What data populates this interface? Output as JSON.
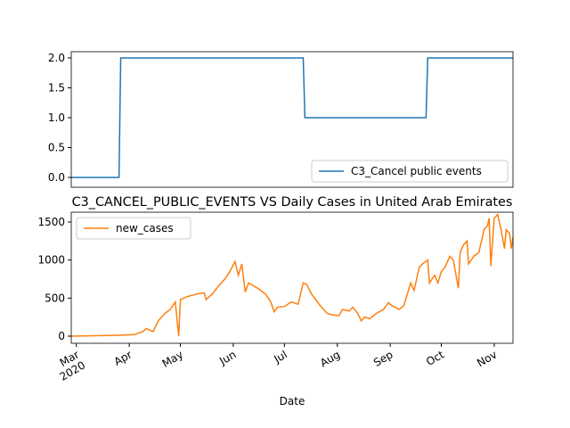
{
  "chart_data": [
    {
      "type": "line",
      "x": [
        "2020-02-27",
        "2020-03-26",
        "2020-03-27",
        "2020-07-12",
        "2020-07-13",
        "2020-09-22",
        "2020-09-23",
        "2020-11-12"
      ],
      "series": [
        {
          "name": "C3_Cancel public events",
          "color": "#1f77b4",
          "values": [
            0,
            0,
            2,
            2,
            1,
            1,
            2,
            2
          ]
        }
      ],
      "xlim": [
        "2020-02-27",
        "2020-11-12"
      ],
      "ylim": [
        -0.164,
        2.104
      ],
      "yticks": [
        {
          "value": 0,
          "label": "0.0"
        },
        {
          "value": 0.5,
          "label": "0.5"
        },
        {
          "value": 1,
          "label": "1.0"
        },
        {
          "value": 1.5,
          "label": "1.5"
        },
        {
          "value": 2,
          "label": "2.0"
        }
      ],
      "legend": "lower right"
    },
    {
      "type": "line",
      "title": "C3_CANCEL_PUBLIC_EVENTS VS Daily Cases in United Arab Emirates",
      "x_label": "Date",
      "x": [
        "2020-02-27",
        "2020-03-24",
        "2020-04-04",
        "2020-04-09",
        "2020-04-11",
        "2020-04-15",
        "2020-04-18",
        "2020-04-22",
        "2020-04-25",
        "2020-04-28",
        "2020-04-30",
        "2020-05-01",
        "2020-05-05",
        "2020-05-10",
        "2020-05-15",
        "2020-05-16",
        "2020-05-20",
        "2020-05-23",
        "2020-05-27",
        "2020-05-30",
        "2020-06-02",
        "2020-06-04",
        "2020-06-06",
        "2020-06-08",
        "2020-06-10",
        "2020-06-16",
        "2020-06-20",
        "2020-06-23",
        "2020-06-25",
        "2020-06-27",
        "2020-07-01",
        "2020-07-05",
        "2020-07-09",
        "2020-07-12",
        "2020-07-14",
        "2020-07-17",
        "2020-07-22",
        "2020-07-26",
        "2020-07-29",
        "2020-08-02",
        "2020-08-04",
        "2020-08-08",
        "2020-08-10",
        "2020-08-13",
        "2020-08-15",
        "2020-08-17",
        "2020-08-20",
        "2020-08-24",
        "2020-08-28",
        "2020-08-31",
        "2020-09-02",
        "2020-09-04",
        "2020-09-06",
        "2020-09-09",
        "2020-09-11",
        "2020-09-13",
        "2020-09-15",
        "2020-09-18",
        "2020-09-20",
        "2020-09-23",
        "2020-09-24",
        "2020-09-27",
        "2020-09-29",
        "2020-10-01",
        "2020-10-03",
        "2020-10-06",
        "2020-10-08",
        "2020-10-11",
        "2020-10-12",
        "2020-10-14",
        "2020-10-16",
        "2020-10-17",
        "2020-10-20",
        "2020-10-23",
        "2020-10-26",
        "2020-10-28",
        "2020-10-29",
        "2020-10-30",
        "2020-11-01",
        "2020-11-03",
        "2020-11-05",
        "2020-11-07",
        "2020-11-08",
        "2020-11-10",
        "2020-11-11",
        "2020-11-12"
      ],
      "series": [
        {
          "name": "new_cases",
          "color": "#ff7f0e",
          "values": [
            0,
            10,
            20,
            60,
            100,
            60,
            200,
            300,
            350,
            450,
            0,
            480,
            520,
            550,
            570,
            480,
            560,
            650,
            750,
            850,
            980,
            800,
            950,
            580,
            700,
            620,
            550,
            450,
            320,
            380,
            390,
            450,
            420,
            700,
            680,
            550,
            400,
            300,
            280,
            270,
            350,
            330,
            380,
            300,
            200,
            250,
            230,
            300,
            350,
            440,
            400,
            380,
            350,
            400,
            550,
            700,
            600,
            900,
            950,
            1000,
            700,
            800,
            700,
            850,
            900,
            1050,
            1000,
            630,
            1100,
            1200,
            1250,
            950,
            1050,
            1100,
            1400,
            1450,
            1550,
            920,
            1550,
            1600,
            1400,
            1150,
            1400,
            1350,
            1150,
            1300
          ]
        }
      ],
      "xlim": [
        "2020-02-27",
        "2020-11-12"
      ],
      "xticks": [
        {
          "value": "2020-03-01",
          "label": "Mar\n2020"
        },
        {
          "value": "2020-04-01",
          "label": "Apr"
        },
        {
          "value": "2020-05-01",
          "label": "May"
        },
        {
          "value": "2020-06-01",
          "label": "Jun"
        },
        {
          "value": "2020-07-01",
          "label": "Jul"
        },
        {
          "value": "2020-08-01",
          "label": "Aug"
        },
        {
          "value": "2020-09-01",
          "label": "Sep"
        },
        {
          "value": "2020-10-01",
          "label": "Oct"
        },
        {
          "value": "2020-11-01",
          "label": "Nov"
        }
      ],
      "ylim": [
        -94,
        1629
      ],
      "yticks": [
        0,
        500,
        1000,
        1500
      ],
      "legend": "upper left"
    }
  ]
}
